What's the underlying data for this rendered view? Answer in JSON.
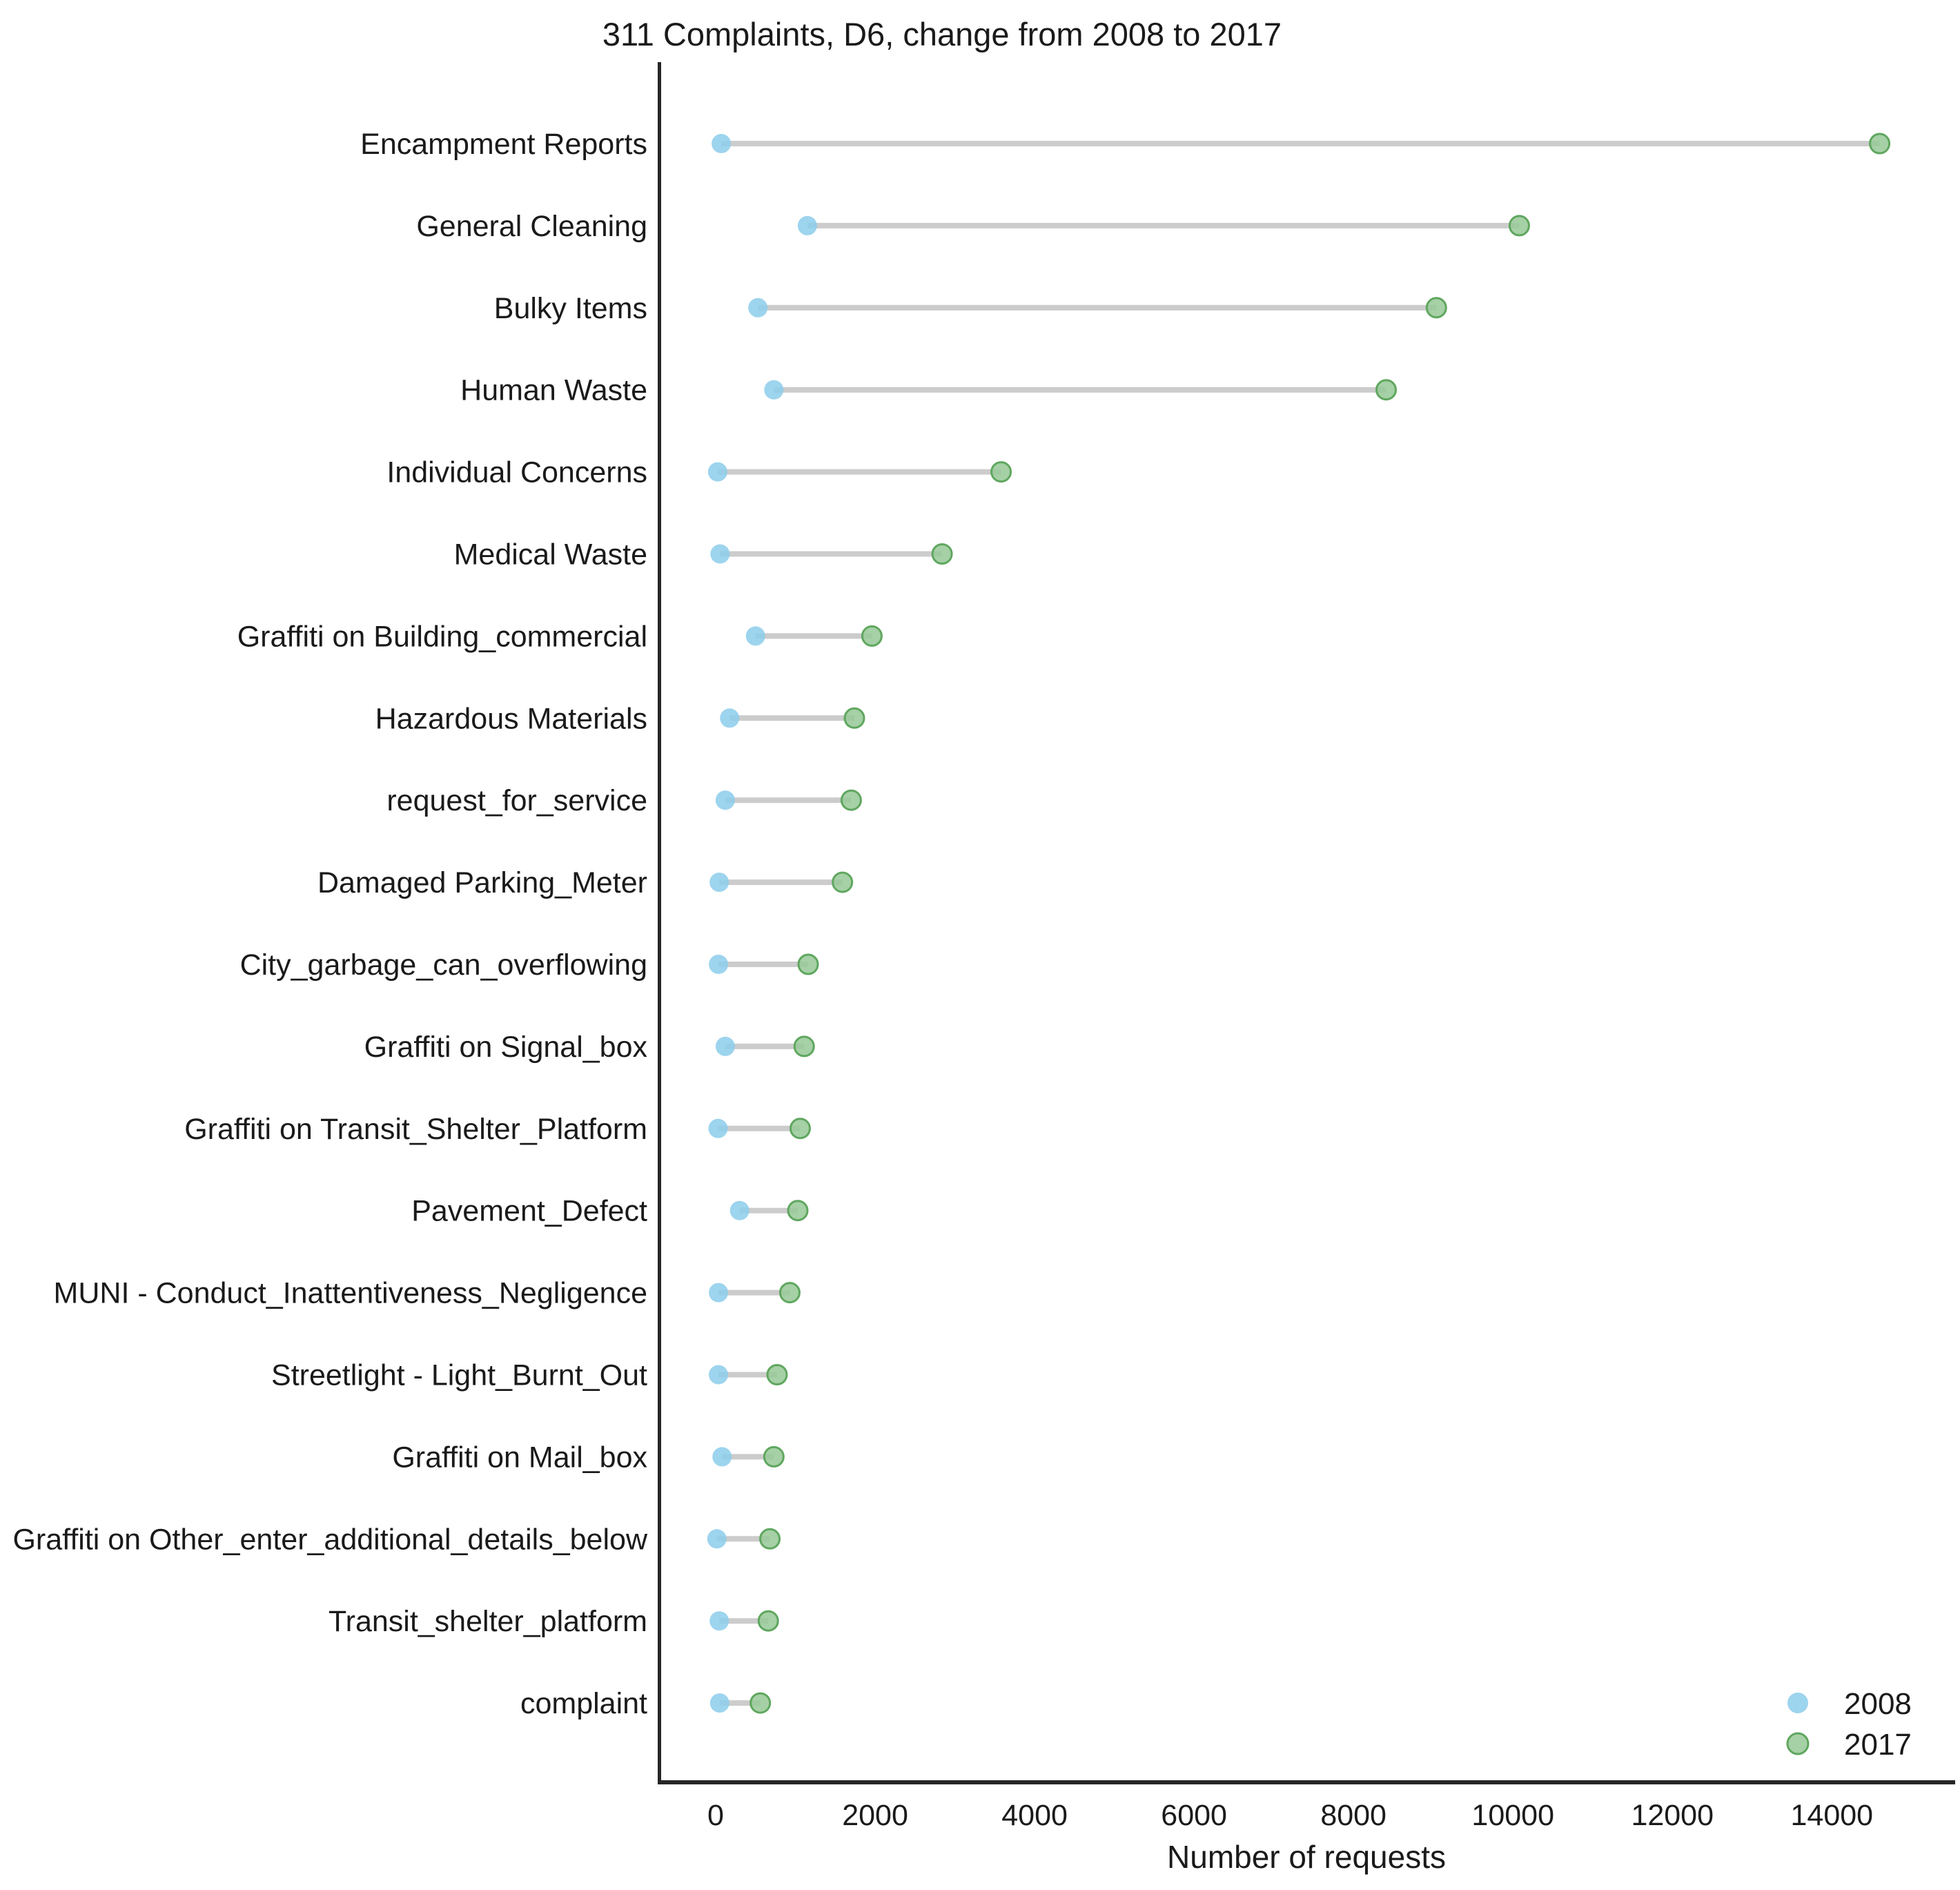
{
  "chart_data": {
    "type": "dumbbell",
    "title": "311 Complaints, D6, change from 2008 to 2017",
    "xlabel": "Number of requests",
    "ylabel": "",
    "categories": [
      "Encampment Reports",
      "General Cleaning",
      "Bulky Items",
      "Human Waste",
      "Individual Concerns",
      "Medical Waste",
      "Graffiti on Building_commercial",
      "Hazardous Materials",
      "request_for_service",
      "Damaged Parking_Meter",
      "City_garbage_can_overflowing",
      "Graffiti on Signal_box",
      "Graffiti on Transit_Shelter_Platform",
      "Pavement_Defect",
      "MUNI - Conduct_Inattentiveness_Negligence",
      "Streetlight - Light_Burnt_Out",
      "Graffiti on Mail_box",
      "Graffiti on Other_enter_additional_details_below",
      "Transit_shelter_platform",
      "complaint"
    ],
    "series": [
      {
        "name": "2008",
        "color": "#8ccdeb",
        "values": [
          70,
          1150,
          530,
          730,
          25,
          55,
          500,
          175,
          120,
          45,
          35,
          120,
          30,
          300,
          35,
          35,
          80,
          15,
          45,
          50
        ]
      },
      {
        "name": "2017",
        "color": "#97c897",
        "edge_color": "#5fa75f",
        "values": [
          14600,
          10080,
          9040,
          8410,
          3580,
          2840,
          1960,
          1740,
          1700,
          1590,
          1160,
          1110,
          1060,
          1030,
          930,
          770,
          730,
          680,
          660,
          560
        ]
      }
    ],
    "x_ticks": [
      0,
      2000,
      4000,
      6000,
      8000,
      10000,
      12000,
      14000
    ],
    "xlim": [
      -620,
      15520
    ],
    "grid": false,
    "legend_position": "lower right",
    "colors": {
      "connector": "#cccccc",
      "spine": "#262626",
      "text": "#1a1a1a"
    }
  }
}
